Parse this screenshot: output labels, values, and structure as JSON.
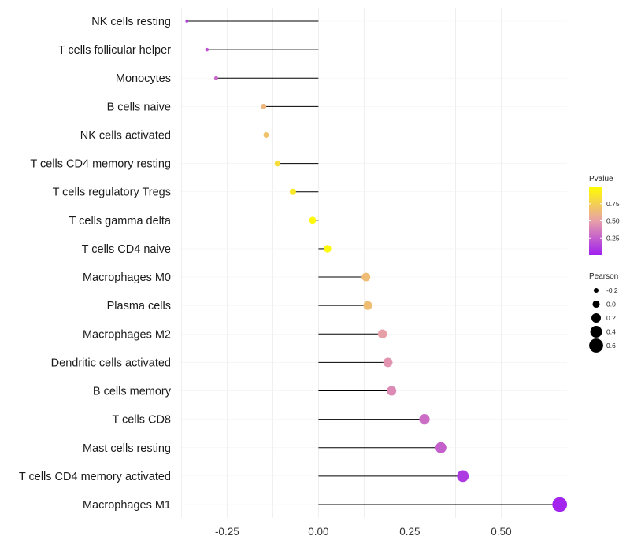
{
  "chart_data": {
    "type": "lollipop",
    "title": "",
    "xlabel": "",
    "ylabel": "",
    "xlim": [
      -0.38,
      0.68
    ],
    "xticks": [
      -0.25,
      0.0,
      0.25,
      0.5
    ],
    "xtick_labels": [
      "-0.25",
      "0.00",
      "0.25",
      "0.50"
    ],
    "grid": true,
    "legend_position": "right",
    "colors": {
      "low": "#a020f0",
      "mid": "#e8a0a8",
      "high": "#ffff00",
      "stem": "#000000",
      "grid": "#ebebeb"
    },
    "categories": [
      "NK cells resting",
      "T cells follicular helper",
      "Monocytes",
      "B cells naive",
      "NK cells activated",
      "T cells CD4 memory resting",
      "T cells regulatory  Tregs ",
      "T cells gamma delta",
      "T cells CD4 naive",
      "Macrophages M0",
      "Plasma cells",
      "Macrophages M2",
      "Dendritic cells activated",
      "B cells memory",
      "T cells CD8",
      "Mast cells resting",
      "T cells CD4 memory activated",
      "Macrophages M1"
    ],
    "pearson": [
      -0.36,
      -0.305,
      -0.28,
      -0.15,
      -0.143,
      -0.112,
      -0.07,
      -0.016,
      0.025,
      0.13,
      0.135,
      0.175,
      0.19,
      0.2,
      0.29,
      0.335,
      0.395,
      0.66
    ],
    "pvalue": [
      0.12,
      0.2,
      0.28,
      0.62,
      0.68,
      0.82,
      0.88,
      0.97,
      0.97,
      0.65,
      0.66,
      0.5,
      0.45,
      0.42,
      0.3,
      0.25,
      0.1,
      0.02
    ],
    "legends": {
      "pvalue": {
        "title": "Pvalue",
        "ticks": [
          0.25,
          0.5,
          0.75
        ],
        "tick_labels": [
          "0.25",
          "0.50",
          "0.75"
        ],
        "range": [
          0.0,
          1.0
        ]
      },
      "pearson": {
        "title": "Pearson",
        "values": [
          -0.2,
          0.0,
          0.2,
          0.4,
          0.6
        ],
        "labels": [
          "-0.2",
          "0.0",
          "0.2",
          "0.4",
          "0.6"
        ]
      }
    }
  }
}
